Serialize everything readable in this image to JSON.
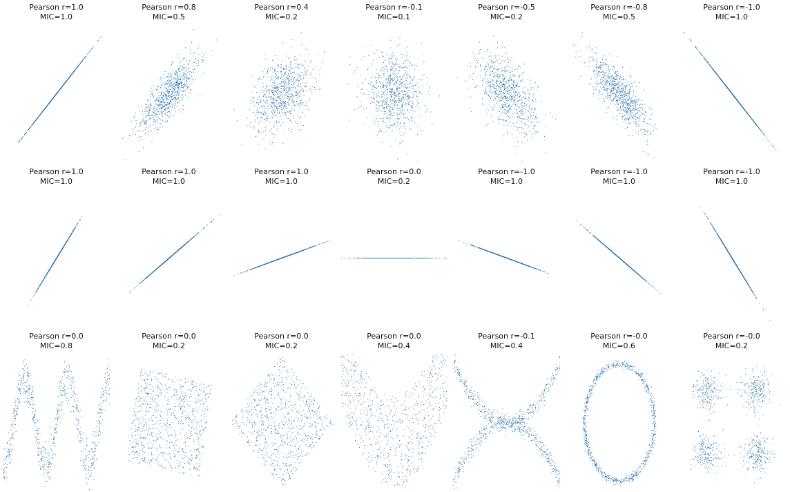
{
  "style": {
    "point_color": "#1f6fa8",
    "background": "#ffffff"
  },
  "chart_data": [
    {
      "type": "scatter",
      "generator": "bivariate-normal",
      "params": {
        "rho": 1.0
      },
      "n": 800,
      "title": "Pearson r=1.0",
      "subtitle": "MIC=1.0",
      "axes": "off"
    },
    {
      "type": "scatter",
      "generator": "bivariate-normal",
      "params": {
        "rho": 0.8
      },
      "n": 800,
      "title": "Pearson r=0.8",
      "subtitle": "MIC=0.5",
      "axes": "off"
    },
    {
      "type": "scatter",
      "generator": "bivariate-normal",
      "params": {
        "rho": 0.4
      },
      "n": 800,
      "title": "Pearson r=0.4",
      "subtitle": "MIC=0.2",
      "axes": "off"
    },
    {
      "type": "scatter",
      "generator": "bivariate-normal",
      "params": {
        "rho": -0.1
      },
      "n": 800,
      "title": "Pearson r=-0.1",
      "subtitle": "MIC=0.1",
      "axes": "off"
    },
    {
      "type": "scatter",
      "generator": "bivariate-normal",
      "params": {
        "rho": -0.5
      },
      "n": 800,
      "title": "Pearson r=-0.5",
      "subtitle": "MIC=0.2",
      "axes": "off"
    },
    {
      "type": "scatter",
      "generator": "bivariate-normal",
      "params": {
        "rho": -0.8
      },
      "n": 800,
      "title": "Pearson r=-0.8",
      "subtitle": "MIC=0.5",
      "axes": "off"
    },
    {
      "type": "scatter",
      "generator": "bivariate-normal",
      "params": {
        "rho": -1.0
      },
      "n": 800,
      "title": "Pearson r=-1.0",
      "subtitle": "MIC=1.0",
      "axes": "off"
    },
    {
      "type": "scatter",
      "generator": "rotated-line",
      "params": {
        "angle_deg": 52
      },
      "n": 800,
      "title": "Pearson r=1.0",
      "subtitle": "MIC=1.0",
      "axes": "off"
    },
    {
      "type": "scatter",
      "generator": "rotated-line",
      "params": {
        "angle_deg": 34
      },
      "n": 800,
      "title": "Pearson r=1.0",
      "subtitle": "MIC=1.0",
      "axes": "off"
    },
    {
      "type": "scatter",
      "generator": "rotated-line",
      "params": {
        "angle_deg": 16
      },
      "n": 800,
      "title": "Pearson r=1.0",
      "subtitle": "MIC=1.0",
      "axes": "off"
    },
    {
      "type": "scatter",
      "generator": "rotated-line",
      "params": {
        "angle_deg": 0
      },
      "n": 800,
      "title": "Pearson r=0.0",
      "subtitle": "MIC=0.2",
      "axes": "off"
    },
    {
      "type": "scatter",
      "generator": "rotated-line",
      "params": {
        "angle_deg": -16
      },
      "n": 800,
      "title": "Pearson r=-1.0",
      "subtitle": "MIC=1.0",
      "axes": "off"
    },
    {
      "type": "scatter",
      "generator": "rotated-line",
      "params": {
        "angle_deg": -34
      },
      "n": 800,
      "title": "Pearson r=-1.0",
      "subtitle": "MIC=1.0",
      "axes": "off"
    },
    {
      "type": "scatter",
      "generator": "rotated-line",
      "params": {
        "angle_deg": -52
      },
      "n": 800,
      "title": "Pearson r=-1.0",
      "subtitle": "MIC=1.0",
      "axes": "off"
    },
    {
      "type": "scatter",
      "generator": "sine",
      "n": 800,
      "title": "Pearson r=0.0",
      "subtitle": "MIC=0.8",
      "axes": "off"
    },
    {
      "type": "scatter",
      "generator": "rotated-square",
      "params": {
        "angle_deg": -10
      },
      "n": 800,
      "title": "Pearson r=0.0",
      "subtitle": "MIC=0.2",
      "axes": "off"
    },
    {
      "type": "scatter",
      "generator": "rotated-square",
      "params": {
        "angle_deg": -45
      },
      "n": 800,
      "title": "Pearson r=0.0",
      "subtitle": "MIC=0.2",
      "axes": "off"
    },
    {
      "type": "scatter",
      "generator": "parabola",
      "n": 800,
      "title": "Pearson r=0.0",
      "subtitle": "MIC=0.4",
      "axes": "off"
    },
    {
      "type": "scatter",
      "generator": "x-shape",
      "n": 800,
      "title": "Pearson r=-0.1",
      "subtitle": "MIC=0.4",
      "axes": "off"
    },
    {
      "type": "scatter",
      "generator": "circle",
      "n": 800,
      "title": "Pearson r=-0.0",
      "subtitle": "MIC=0.6",
      "axes": "off"
    },
    {
      "type": "scatter",
      "generator": "four-clusters",
      "n": 800,
      "title": "Pearson r=-0.0",
      "subtitle": "MIC=0.2",
      "axes": "off"
    }
  ]
}
